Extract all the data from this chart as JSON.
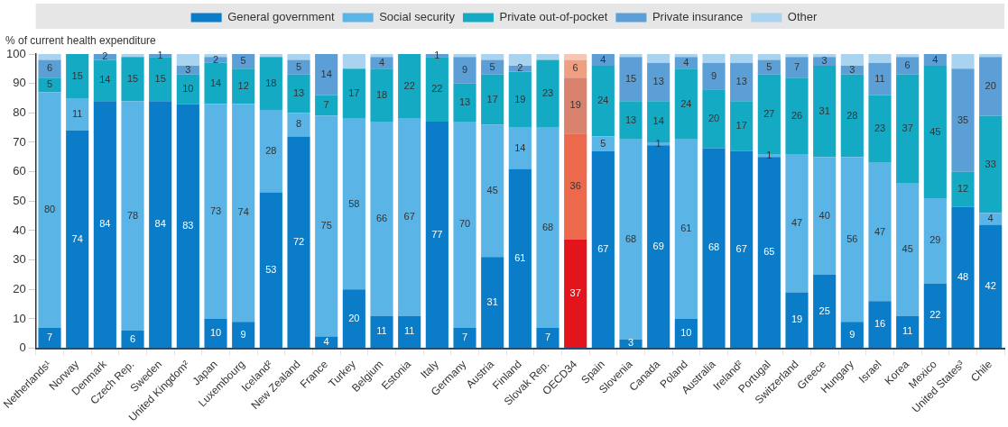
{
  "chart_data": {
    "type": "bar",
    "stacked": true,
    "ylabel": "% of current health expenditure",
    "categories": [
      "Netherlands¹",
      "Norway",
      "Denmark",
      "Czech Rep.",
      "Sweden",
      "United Kingdom²",
      "Japan",
      "Luxembourg",
      "Iceland²",
      "New Zealand",
      "France",
      "Turkey",
      "Belgium",
      "Estonia",
      "Italy",
      "Germany",
      "Austria",
      "Finland",
      "Slovak Rep.",
      "OECD34",
      "Spain",
      "Slovenia",
      "Canada",
      "Poland",
      "Australia",
      "Ireland²",
      "Portugal",
      "Switzerland",
      "Greece",
      "Hungary",
      "Israel",
      "Korea",
      "Mexico",
      "United States³",
      "Chile"
    ],
    "ylim": [
      0,
      100
    ],
    "yticks": [
      0,
      10,
      20,
      30,
      40,
      50,
      60,
      70,
      80,
      90,
      100
    ],
    "grid": false,
    "legend": "top",
    "series": [
      {
        "name": "General government",
        "color": "#0a7cc8",
        "colors": [
          "#0a7cc8",
          "#0a7cc8",
          "#0a7cc8",
          "#0a7cc8",
          "#0a7cc8",
          "#0a7cc8",
          "#0a7cc8",
          "#0a7cc8",
          "#0a7cc8",
          "#0a7cc8",
          "#0a7cc8",
          "#0a7cc8",
          "#0a7cc8",
          "#0a7cc8",
          "#0a7cc8",
          "#0a7cc8",
          "#0a7cc8",
          "#0a7cc8",
          "#0a7cc8",
          "#e3141c",
          "#0a7cc8",
          "#0a7cc8",
          "#0a7cc8",
          "#0a7cc8",
          "#0a7cc8",
          "#0a7cc8",
          "#0a7cc8",
          "#0a7cc8",
          "#0a7cc8",
          "#0a7cc8",
          "#0a7cc8",
          "#0a7cc8",
          "#0a7cc8",
          "#0a7cc8",
          "#0a7cc8"
        ],
        "values": [
          7,
          74,
          84,
          6,
          84,
          83,
          10,
          9,
          53,
          72,
          4,
          20,
          11,
          11,
          77,
          7,
          31,
          61,
          7,
          37,
          67,
          3,
          69,
          10,
          68,
          67,
          65,
          19,
          25,
          9,
          16,
          11,
          22,
          48,
          42
        ],
        "value_labels": [
          "7",
          "74",
          "84",
          "6",
          "84",
          "83",
          "10",
          "9",
          "53",
          "72",
          "4",
          "20",
          "11",
          "11",
          "77",
          "7",
          "31",
          "61",
          "7",
          "37",
          "67",
          "3",
          "69",
          "10",
          "68",
          "67",
          "65",
          "19",
          "25",
          "9",
          "16",
          "11",
          "22",
          "48",
          "42"
        ]
      },
      {
        "name": "Social security",
        "color": "#5ab4e6",
        "colors": [
          "#5ab4e6",
          "#5ab4e6",
          "#5ab4e6",
          "#5ab4e6",
          "#5ab4e6",
          "#5ab4e6",
          "#5ab4e6",
          "#5ab4e6",
          "#5ab4e6",
          "#5ab4e6",
          "#5ab4e6",
          "#5ab4e6",
          "#5ab4e6",
          "#5ab4e6",
          "#5ab4e6",
          "#5ab4e6",
          "#5ab4e6",
          "#5ab4e6",
          "#5ab4e6",
          "#ec6a4b",
          "#5ab4e6",
          "#5ab4e6",
          "#5ab4e6",
          "#5ab4e6",
          "#5ab4e6",
          "#5ab4e6",
          "#5ab4e6",
          "#5ab4e6",
          "#5ab4e6",
          "#5ab4e6",
          "#5ab4e6",
          "#5ab4e6",
          "#5ab4e6",
          "#5ab4e6",
          "#5ab4e6"
        ],
        "values": [
          80,
          11,
          0,
          78,
          0,
          0,
          73,
          74,
          28,
          8,
          75,
          58,
          66,
          67,
          0,
          70,
          45,
          14,
          68,
          36,
          5,
          68,
          1,
          61,
          0,
          0,
          1,
          47,
          40,
          56,
          47,
          45,
          29,
          0,
          4
        ],
        "value_labels": [
          "80",
          "11",
          null,
          "78",
          null,
          null,
          "73",
          "74",
          "28",
          "8",
          "75",
          "58",
          "66",
          "67",
          null,
          "70",
          "45",
          "14",
          "68",
          "36",
          "5",
          "68",
          "1",
          "61",
          null,
          null,
          "1",
          "47",
          "40",
          "56",
          "47",
          "45",
          "29",
          null,
          "4"
        ]
      },
      {
        "name": "Private out-of-pocket",
        "color": "#14aac4",
        "colors": [
          "#14aac4",
          "#14aac4",
          "#14aac4",
          "#14aac4",
          "#14aac4",
          "#14aac4",
          "#14aac4",
          "#14aac4",
          "#14aac4",
          "#14aac4",
          "#14aac4",
          "#14aac4",
          "#14aac4",
          "#14aac4",
          "#14aac4",
          "#14aac4",
          "#14aac4",
          "#14aac4",
          "#14aac4",
          "#d9826e",
          "#14aac4",
          "#14aac4",
          "#14aac4",
          "#14aac4",
          "#14aac4",
          "#14aac4",
          "#14aac4",
          "#14aac4",
          "#14aac4",
          "#14aac4",
          "#14aac4",
          "#14aac4",
          "#14aac4",
          "#14aac4",
          "#14aac4"
        ],
        "values": [
          5,
          15,
          14,
          15,
          15,
          10,
          14,
          12,
          18,
          13,
          7,
          17,
          18,
          22,
          22,
          13,
          17,
          19,
          23,
          19,
          24,
          13,
          14,
          24,
          20,
          17,
          27,
          26,
          31,
          28,
          23,
          37,
          45,
          12,
          33
        ],
        "value_labels": [
          "5",
          "15",
          "14",
          "15",
          "15",
          "10",
          "14",
          "12",
          "18",
          "13",
          "7",
          "17",
          "18",
          "22",
          "22",
          "13",
          "17",
          "19",
          "23",
          "19",
          "24",
          "13",
          "14",
          "24",
          "20",
          "17",
          "27",
          "26",
          "31",
          "28",
          "23",
          "37",
          "45",
          "12",
          "33"
        ]
      },
      {
        "name": "Private insurance",
        "color": "#5b9fd6",
        "colors": [
          "#5b9fd6",
          "#5b9fd6",
          "#5b9fd6",
          "#5b9fd6",
          "#5b9fd6",
          "#5b9fd6",
          "#5b9fd6",
          "#5b9fd6",
          "#5b9fd6",
          "#5b9fd6",
          "#5b9fd6",
          "#5b9fd6",
          "#5b9fd6",
          "#5b9fd6",
          "#5b9fd6",
          "#5b9fd6",
          "#5b9fd6",
          "#5b9fd6",
          "#5b9fd6",
          "#f0a080",
          "#5b9fd6",
          "#5b9fd6",
          "#5b9fd6",
          "#5b9fd6",
          "#5b9fd6",
          "#5b9fd6",
          "#5b9fd6",
          "#5b9fd6",
          "#5b9fd6",
          "#5b9fd6",
          "#5b9fd6",
          "#5b9fd6",
          "#5b9fd6",
          "#5b9fd6",
          "#5b9fd6"
        ],
        "values": [
          6,
          0,
          2,
          0,
          1,
          3,
          2,
          5,
          0,
          5,
          14,
          0,
          4,
          0,
          1,
          9,
          5,
          2,
          0,
          6,
          4,
          15,
          13,
          4,
          9,
          13,
          5,
          7,
          3,
          3,
          11,
          6,
          4,
          35,
          20
        ],
        "value_labels": [
          "6",
          null,
          "2",
          null,
          "1",
          "3",
          "2",
          "5",
          null,
          "5",
          "14",
          null,
          "4",
          null,
          "1",
          "9",
          "5",
          "2",
          null,
          "6",
          "4",
          "15",
          "13",
          "4",
          "9",
          "13",
          "5",
          "7",
          "3",
          "3",
          "11",
          "6",
          "4",
          "35",
          "20"
        ]
      },
      {
        "name": "Other",
        "color": "#a9d3ef",
        "colors": [
          "#a9d3ef",
          "#a9d3ef",
          "#a9d3ef",
          "#a9d3ef",
          "#a9d3ef",
          "#a9d3ef",
          "#a9d3ef",
          "#a9d3ef",
          "#a9d3ef",
          "#a9d3ef",
          "#a9d3ef",
          "#a9d3ef",
          "#a9d3ef",
          "#a9d3ef",
          "#a9d3ef",
          "#a9d3ef",
          "#a9d3ef",
          "#a9d3ef",
          "#a9d3ef",
          "#f7c6b4",
          "#a9d3ef",
          "#a9d3ef",
          "#a9d3ef",
          "#a9d3ef",
          "#a9d3ef",
          "#a9d3ef",
          "#a9d3ef",
          "#a9d3ef",
          "#a9d3ef",
          "#a9d3ef",
          "#a9d3ef",
          "#a9d3ef",
          "#a9d3ef",
          "#a9d3ef",
          "#a9d3ef"
        ],
        "values": [
          2,
          0,
          0,
          1,
          0,
          4,
          1,
          0,
          1,
          2,
          0,
          5,
          1,
          0,
          0,
          1,
          2,
          4,
          2,
          2,
          0,
          1,
          3,
          1,
          3,
          3,
          2,
          1,
          1,
          4,
          3,
          1,
          0,
          5,
          1
        ]
      }
    ]
  }
}
